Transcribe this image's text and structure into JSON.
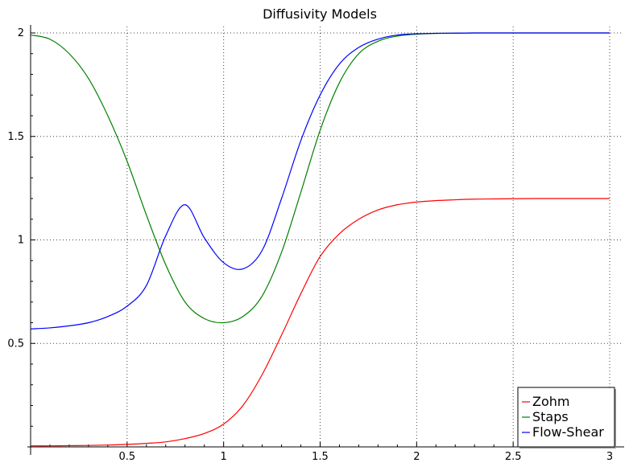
{
  "chart_data": {
    "type": "line",
    "title": "Diffusivity Models",
    "xlabel": "",
    "ylabel": "",
    "xlim": [
      0.0,
      3.0
    ],
    "ylim": [
      0.0,
      2.0
    ],
    "xticks": [
      0.5,
      1,
      1.5,
      2,
      2.5,
      3
    ],
    "xtick_labels": [
      "0.5",
      "1",
      "1.5",
      "2",
      "2.5",
      "3"
    ],
    "yticks": [
      0.5,
      1,
      1.5,
      2
    ],
    "ytick_labels": [
      "0.5",
      "1",
      "1.5",
      "2"
    ],
    "grid": true,
    "legend_position": "bottom-right",
    "x": [
      0.0,
      0.1,
      0.2,
      0.3,
      0.4,
      0.5,
      0.6,
      0.7,
      0.8,
      0.9,
      1.0,
      1.1,
      1.2,
      1.3,
      1.4,
      1.5,
      1.6,
      1.7,
      1.8,
      1.9,
      2.0,
      2.1,
      2.2,
      2.3,
      2.4,
      2.5,
      2.6,
      2.7,
      2.8,
      2.9,
      3.0
    ],
    "series": [
      {
        "name": "Zohm",
        "color": "#ff0000",
        "values": [
          0.005,
          0.005,
          0.006,
          0.007,
          0.009,
          0.012,
          0.017,
          0.024,
          0.04,
          0.065,
          0.11,
          0.2,
          0.35,
          0.54,
          0.74,
          0.92,
          1.03,
          1.1,
          1.145,
          1.17,
          1.183,
          1.19,
          1.194,
          1.197,
          1.198,
          1.199,
          1.2,
          1.2,
          1.2,
          1.2,
          1.2
        ]
      },
      {
        "name": "Staps",
        "color": "#008000",
        "values": [
          1.99,
          1.97,
          1.9,
          1.78,
          1.6,
          1.38,
          1.12,
          0.88,
          0.7,
          0.62,
          0.6,
          0.63,
          0.73,
          0.94,
          1.23,
          1.53,
          1.76,
          1.9,
          1.96,
          1.985,
          1.994,
          1.998,
          1.999,
          2.0,
          2.0,
          2.0,
          2.0,
          2.0,
          2.0,
          2.0,
          2.0
        ]
      },
      {
        "name": "Flow-Shear",
        "color": "#0000ff",
        "values": [
          0.57,
          0.575,
          0.585,
          0.6,
          0.63,
          0.68,
          0.78,
          1.02,
          1.17,
          1.01,
          0.89,
          0.86,
          0.95,
          1.2,
          1.48,
          1.7,
          1.85,
          1.93,
          1.97,
          1.99,
          1.996,
          1.998,
          1.999,
          2.0,
          2.0,
          2.0,
          2.0,
          2.0,
          2.0,
          2.0,
          2.0
        ]
      }
    ]
  }
}
